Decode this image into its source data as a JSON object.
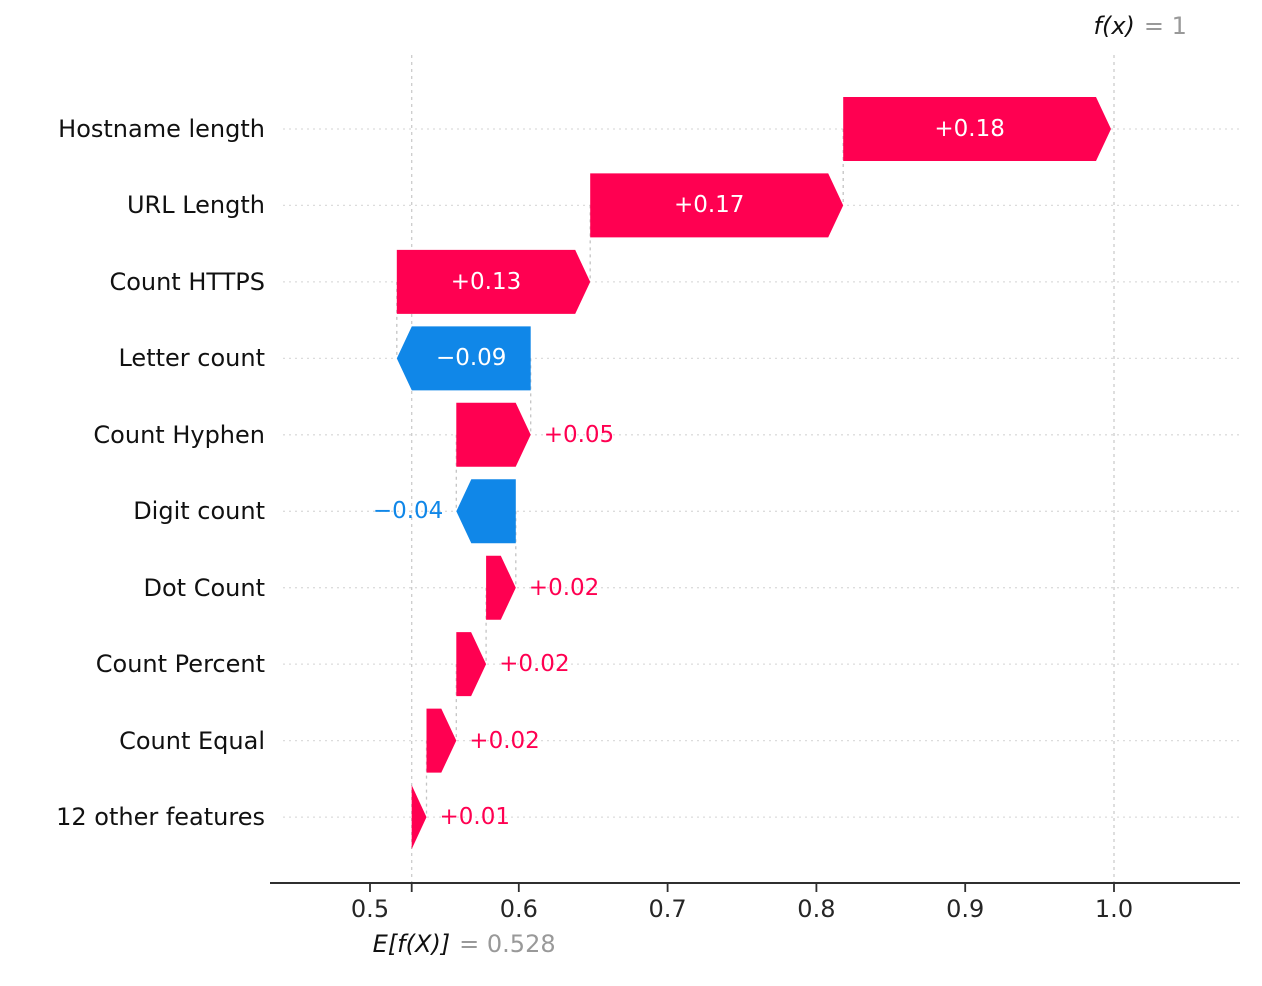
{
  "chart_data": {
    "type": "bar",
    "variant": "shap-waterfall",
    "title": "",
    "xlabel": "",
    "ylabel": "",
    "base_value": 0.528,
    "final_value": 1.0,
    "base_annotation": {
      "label": "E[f(X)]",
      "equals_value": "= 0.528"
    },
    "final_annotation": {
      "label": "f(x)",
      "equals_value": "= 1"
    },
    "features": [
      {
        "label": "Hostname length",
        "value": 0.18,
        "display": "+0.18"
      },
      {
        "label": "URL Length",
        "value": 0.17,
        "display": "+0.17"
      },
      {
        "label": "Count HTTPS",
        "value": 0.13,
        "display": "+0.13"
      },
      {
        "label": "Letter count",
        "value": -0.09,
        "display": "−0.09"
      },
      {
        "label": "Count Hyphen",
        "value": 0.05,
        "display": "+0.05"
      },
      {
        "label": "Digit count",
        "value": -0.04,
        "display": "−0.04"
      },
      {
        "label": "Dot Count",
        "value": 0.02,
        "display": "+0.02"
      },
      {
        "label": "Count Percent",
        "value": 0.02,
        "display": "+0.02"
      },
      {
        "label": "Count Equal",
        "value": 0.02,
        "display": "+0.02"
      },
      {
        "label": "12 other features",
        "value": 0.01,
        "display": "+0.01"
      }
    ],
    "x_ticks": [
      "0.5",
      "0.6",
      "0.7",
      "0.8",
      "0.9",
      "1.0"
    ],
    "x_tick_values": [
      0.5,
      0.6,
      0.7,
      0.8,
      0.9,
      1.0
    ],
    "xlim": [
      0.433,
      1.085
    ],
    "grid": "dotted-row-lines",
    "legend": "none",
    "colors": {
      "positive": "#ff0051",
      "negative": "#1087e8",
      "axis": "#2f2f2f",
      "tick_label": "#262626",
      "feature_label": "#111111",
      "annotation_gray": "#999999",
      "gridline": "#dcdcdc",
      "connector": "#c4c4c4",
      "reference_line": "#cccccc",
      "inside_value_text": "#ffffff"
    }
  }
}
